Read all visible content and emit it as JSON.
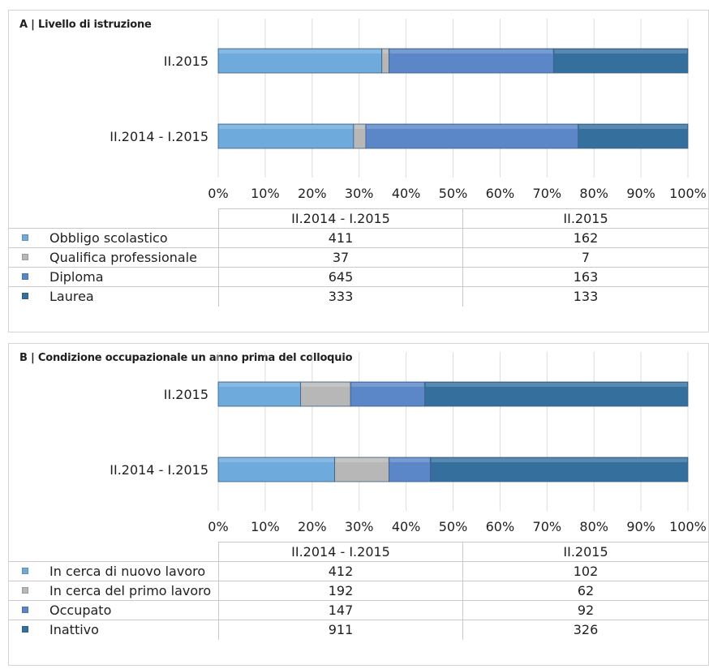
{
  "chart_data": [
    {
      "type": "bar",
      "orientation": "horizontal",
      "stacked": "percent",
      "title": "A | Livello di istruzione",
      "categories": [
        "II.2015",
        "II.2014 - I.2015"
      ],
      "x_ticks": [
        "0%",
        "10%",
        "20%",
        "30%",
        "40%",
        "50%",
        "60%",
        "70%",
        "80%",
        "90%",
        "100%"
      ],
      "xlim": [
        0,
        100
      ],
      "grid": true,
      "table": {
        "columns": [
          "II.2014 - I.2015",
          "II.2015"
        ],
        "rows": [
          {
            "label": "Obbligo scolastico",
            "values": [
              "411",
              "162"
            ]
          },
          {
            "label": "Qualifica professionale",
            "values": [
              "37",
              "7"
            ]
          },
          {
            "label": "Diploma",
            "values": [
              "645",
              "163"
            ]
          },
          {
            "label": "Laurea",
            "values": [
              "333",
              "133"
            ]
          }
        ]
      },
      "series": [
        {
          "name": "Obbligo scolastico",
          "color": "#6eaadc",
          "values": [
            162,
            411
          ]
        },
        {
          "name": "Qualifica professionale",
          "color": "#b7b7b7",
          "values": [
            7,
            37
          ]
        },
        {
          "name": "Diploma",
          "color": "#5b86c8",
          "values": [
            163,
            645
          ]
        },
        {
          "name": "Laurea",
          "color": "#356f9e",
          "values": [
            133,
            333
          ]
        }
      ]
    },
    {
      "type": "bar",
      "orientation": "horizontal",
      "stacked": "percent",
      "title": "B | Condizione occupazionale un anno prima del colloquio",
      "categories": [
        "II.2015",
        "II.2014 - I.2015"
      ],
      "x_ticks": [
        "0%",
        "10%",
        "20%",
        "30%",
        "40%",
        "50%",
        "60%",
        "70%",
        "80%",
        "90%",
        "100%"
      ],
      "xlim": [
        0,
        100
      ],
      "grid": true,
      "table": {
        "columns": [
          "II.2014 - I.2015",
          "II.2015"
        ],
        "rows": [
          {
            "label": "In cerca di nuovo lavoro",
            "values": [
              "412",
              "102"
            ]
          },
          {
            "label": "In cerca del primo lavoro",
            "values": [
              "192",
              "62"
            ]
          },
          {
            "label": "Occupato",
            "values": [
              "147",
              "92"
            ]
          },
          {
            "label": "Inattivo",
            "values": [
              "911",
              "326"
            ]
          }
        ]
      },
      "series": [
        {
          "name": "In cerca di nuovo lavoro",
          "color": "#6eaadc",
          "values": [
            102,
            412
          ]
        },
        {
          "name": "In cerca del primo lavoro",
          "color": "#b7b7b7",
          "values": [
            62,
            192
          ]
        },
        {
          "name": "Occupato",
          "color": "#5b86c8",
          "values": [
            92,
            147
          ]
        },
        {
          "name": "Inattivo",
          "color": "#356f9e",
          "values": [
            326,
            911
          ]
        }
      ]
    }
  ]
}
